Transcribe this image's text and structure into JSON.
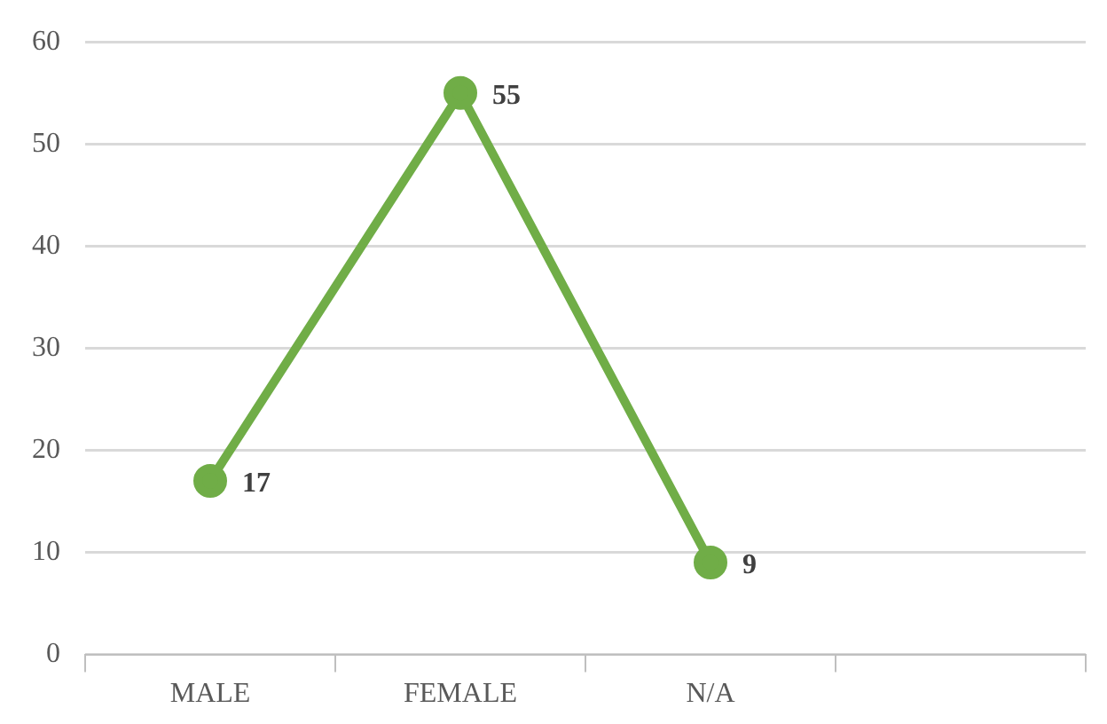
{
  "chart_data": {
    "type": "line",
    "categories": [
      "MALE",
      "FEMALE",
      "N/A",
      null
    ],
    "series": [
      {
        "color": "#70ad47",
        "values": [
          17,
          55,
          9,
          null
        ]
      }
    ],
    "ylim": [
      0,
      60
    ],
    "yticks": [
      0,
      10,
      20,
      30,
      40,
      50,
      60
    ],
    "grid": "y",
    "legend": false,
    "marker": "circle",
    "line_style": "solid",
    "data_labels": true
  }
}
